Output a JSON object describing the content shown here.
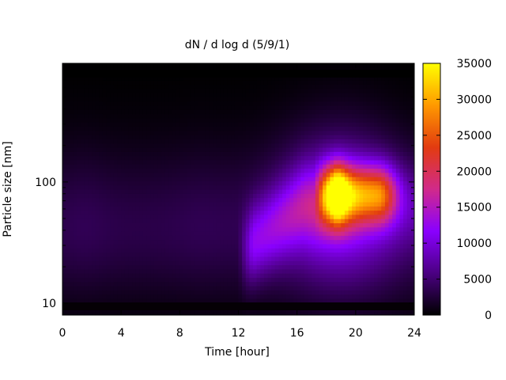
{
  "chart_data": {
    "type": "heatmap",
    "title": "dN / d log d (5/9/1)",
    "xlabel": "Time [hour]",
    "ylabel": "Particle size [nm]",
    "x_ticks": [
      0,
      4,
      8,
      12,
      16,
      20,
      24
    ],
    "xlim": [
      0,
      24
    ],
    "y_scale": "log",
    "y_ticks": [
      10,
      100
    ],
    "ylim": [
      8,
      950
    ],
    "colorbar": {
      "ticks": [
        0,
        5000,
        10000,
        15000,
        20000,
        25000,
        30000,
        35000
      ],
      "range": [
        0,
        35000
      ],
      "palette": [
        "#000000",
        "#4b0082",
        "#8a00ff",
        "#d12a8a",
        "#e23b10",
        "#ff9900",
        "#ffff00"
      ]
    },
    "background_modes": [
      {
        "size_nm": 55,
        "peak_value": 2200,
        "width_log10": 0.45
      },
      {
        "size_nm": 30,
        "peak_value": 1200,
        "width_log10": 0.35
      }
    ],
    "growth_event": {
      "start_hour": 12.5,
      "end_hour": 16.5,
      "start_size_nm": 28,
      "end_size_nm": 65,
      "peak_value": 8500
    },
    "evening_mode": {
      "size_nm": 80,
      "peak_hour": 18.7,
      "peak_value": 35000,
      "plateau_value": 19000,
      "plateau_end_hour": 21.5
    },
    "notes": ""
  }
}
